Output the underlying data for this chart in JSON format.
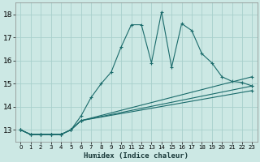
{
  "xlabel": "Humidex (Indice chaleur)",
  "bg_color": "#cce8e4",
  "grid_color": "#a8d0cc",
  "line_color": "#1a6b6b",
  "xlim": [
    -0.5,
    23.5
  ],
  "ylim": [
    12.5,
    18.5
  ],
  "xticks": [
    0,
    1,
    2,
    3,
    4,
    5,
    6,
    7,
    8,
    9,
    10,
    11,
    12,
    13,
    14,
    15,
    16,
    17,
    18,
    19,
    20,
    21,
    22,
    23
  ],
  "yticks": [
    13,
    14,
    15,
    16,
    17,
    18
  ],
  "series1": [
    [
      0,
      13.0
    ],
    [
      1,
      12.8
    ],
    [
      2,
      12.8
    ],
    [
      3,
      12.8
    ],
    [
      4,
      12.8
    ],
    [
      5,
      13.0
    ],
    [
      6,
      13.6
    ],
    [
      7,
      14.4
    ],
    [
      8,
      15.0
    ],
    [
      9,
      15.5
    ],
    [
      10,
      16.6
    ],
    [
      11,
      17.55
    ],
    [
      12,
      17.55
    ],
    [
      13,
      15.9
    ],
    [
      14,
      18.1
    ],
    [
      15,
      15.7
    ],
    [
      16,
      17.6
    ],
    [
      17,
      17.3
    ],
    [
      18,
      16.3
    ],
    [
      19,
      15.9
    ],
    [
      20,
      15.3
    ],
    [
      21,
      15.1
    ],
    [
      22,
      15.05
    ],
    [
      23,
      14.9
    ]
  ],
  "series2": [
    [
      0,
      13.0
    ],
    [
      1,
      12.8
    ],
    [
      2,
      12.8
    ],
    [
      3,
      12.8
    ],
    [
      4,
      12.8
    ],
    [
      5,
      13.0
    ],
    [
      6,
      13.4
    ],
    [
      23,
      15.3
    ]
  ],
  "series3": [
    [
      0,
      13.0
    ],
    [
      1,
      12.8
    ],
    [
      2,
      12.8
    ],
    [
      3,
      12.8
    ],
    [
      4,
      12.8
    ],
    [
      5,
      13.0
    ],
    [
      6,
      13.4
    ],
    [
      23,
      14.9
    ]
  ],
  "series4": [
    [
      0,
      13.0
    ],
    [
      1,
      12.8
    ],
    [
      2,
      12.8
    ],
    [
      3,
      12.8
    ],
    [
      4,
      12.8
    ],
    [
      5,
      13.0
    ],
    [
      6,
      13.4
    ],
    [
      23,
      14.7
    ]
  ]
}
